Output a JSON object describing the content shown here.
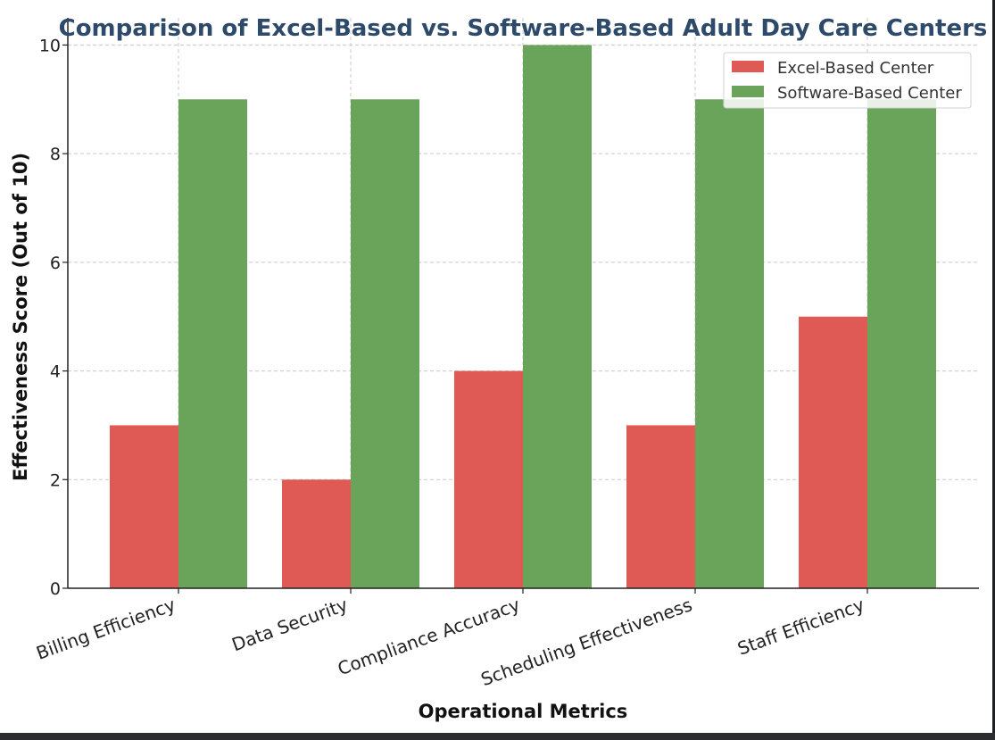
{
  "chart_data": {
    "type": "bar",
    "title": "Comparison of Excel-Based vs. Software-Based Adult Day Care Centers",
    "xlabel": "Operational Metrics",
    "ylabel": "Effectiveness Score (Out of 10)",
    "categories": [
      "Billing Efficiency",
      "Data Security",
      "Compliance Accuracy",
      "Scheduling Effectiveness",
      "Staff Efficiency"
    ],
    "series": [
      {
        "name": "Excel-Based Center",
        "values": [
          3,
          2,
          4,
          3,
          5
        ],
        "color": "#e05a55"
      },
      {
        "name": "Software-Based Center",
        "values": [
          9,
          9,
          10,
          9,
          9
        ],
        "color": "#6aa45a"
      }
    ],
    "ylim": [
      0,
      10.5
    ],
    "yticks": [
      "0",
      "2",
      "4",
      "6",
      "8",
      "10"
    ],
    "grid": true,
    "legend_position": "top-right",
    "title_color": "#2e4a6b"
  }
}
